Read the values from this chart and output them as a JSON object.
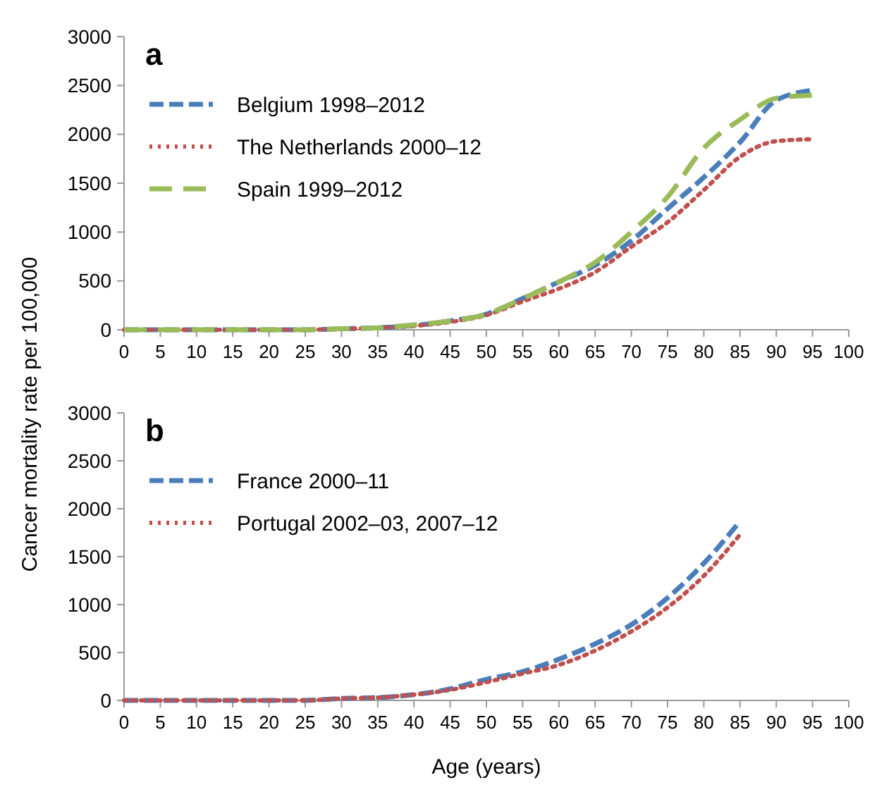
{
  "chart_data": [
    {
      "type": "line",
      "title": "a",
      "x": [
        0,
        5,
        10,
        15,
        20,
        25,
        30,
        35,
        40,
        45,
        50,
        55,
        60,
        65,
        70,
        75,
        80,
        85,
        90,
        95
      ],
      "ylabel": "Cancer mortality rate per 100,000",
      "xlim": [
        0,
        100
      ],
      "ylim": [
        0,
        3000
      ],
      "xticks": [
        0,
        5,
        10,
        15,
        20,
        25,
        30,
        35,
        40,
        45,
        50,
        55,
        60,
        65,
        70,
        75,
        80,
        85,
        90,
        95,
        100
      ],
      "yticks": [
        0,
        500,
        1000,
        1500,
        2000,
        2500,
        3000
      ],
      "legend": "top left",
      "grid": false,
      "series": [
        {
          "name": "Belgium 1998–2012",
          "color": "#4a7ebb",
          "line_style": "dashed",
          "values": [
            0,
            0,
            0,
            0,
            0,
            0,
            10,
            20,
            45,
            90,
            160,
            320,
            490,
            660,
            910,
            1240,
            1560,
            1920,
            2350,
            2450
          ]
        },
        {
          "name": "The Netherlands 2000–12",
          "color": "#c0504d",
          "line_style": "dotted",
          "values": [
            0,
            0,
            0,
            0,
            0,
            0,
            10,
            20,
            40,
            80,
            150,
            290,
            420,
            590,
            850,
            1100,
            1430,
            1770,
            1930,
            1950
          ]
        },
        {
          "name": "Spain 1999–2012",
          "color": "#9bbb59",
          "line_style": "longdash",
          "values": [
            0,
            0,
            0,
            0,
            0,
            0,
            10,
            20,
            50,
            90,
            160,
            320,
            490,
            690,
            1000,
            1360,
            1860,
            2150,
            2370,
            2400
          ]
        }
      ]
    },
    {
      "type": "line",
      "title": "b",
      "x": [
        0,
        5,
        10,
        15,
        20,
        25,
        30,
        35,
        40,
        45,
        50,
        55,
        60,
        65,
        70,
        75,
        80,
        85
      ],
      "xlabel": "Age (years)",
      "xlim": [
        0,
        100
      ],
      "ylim": [
        0,
        3000
      ],
      "xticks": [
        0,
        5,
        10,
        15,
        20,
        25,
        30,
        35,
        40,
        45,
        50,
        55,
        60,
        65,
        70,
        75,
        80,
        85,
        90,
        95,
        100
      ],
      "yticks": [
        0,
        500,
        1000,
        1500,
        2000,
        2500,
        3000
      ],
      "legend": "top left",
      "grid": false,
      "series": [
        {
          "name": "France 2000–11",
          "color": "#4a7ebb",
          "line_style": "dashed",
          "values": [
            0,
            0,
            0,
            0,
            0,
            0,
            20,
            30,
            60,
            120,
            220,
            300,
            430,
            590,
            790,
            1070,
            1430,
            1870
          ]
        },
        {
          "name": "Portugal 2002–03, 2007–12",
          "color": "#c0504d",
          "line_style": "dotted",
          "values": [
            0,
            0,
            0,
            0,
            0,
            0,
            20,
            30,
            60,
            110,
            190,
            280,
            370,
            520,
            720,
            970,
            1300,
            1730
          ]
        }
      ]
    }
  ]
}
